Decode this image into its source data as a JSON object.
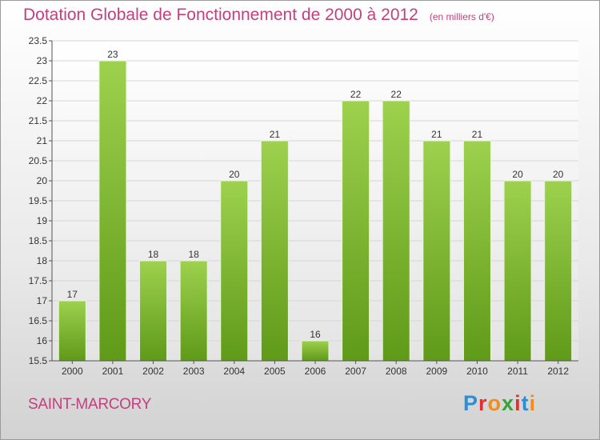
{
  "header": {
    "title": "Dotation Globale de Fonctionnement de 2000 à 2012",
    "unit": "(en milliers d'€)"
  },
  "footer": {
    "commune": "SAINT-MARCORY",
    "brand": "Proxiti"
  },
  "colors": {
    "accent": "#c2407f",
    "bar_light": "#9dd14e",
    "bar_dark": "#5f9a18"
  },
  "chart_data": {
    "type": "bar",
    "categories": [
      "2000",
      "2001",
      "2002",
      "2003",
      "2004",
      "2005",
      "2006",
      "2007",
      "2008",
      "2009",
      "2010",
      "2011",
      "2012"
    ],
    "values": [
      17,
      23,
      18,
      18,
      20,
      21,
      16,
      22,
      22,
      21,
      21,
      20,
      20
    ],
    "ylim": [
      15.5,
      23.5
    ],
    "ytick_step": 0.5,
    "yticks": [
      "15.5",
      "16",
      "16.5",
      "17",
      "17.5",
      "18",
      "18.5",
      "19",
      "19.5",
      "20",
      "20.5",
      "21",
      "21.5",
      "22",
      "22.5",
      "23",
      "23.5"
    ],
    "grid": true
  }
}
